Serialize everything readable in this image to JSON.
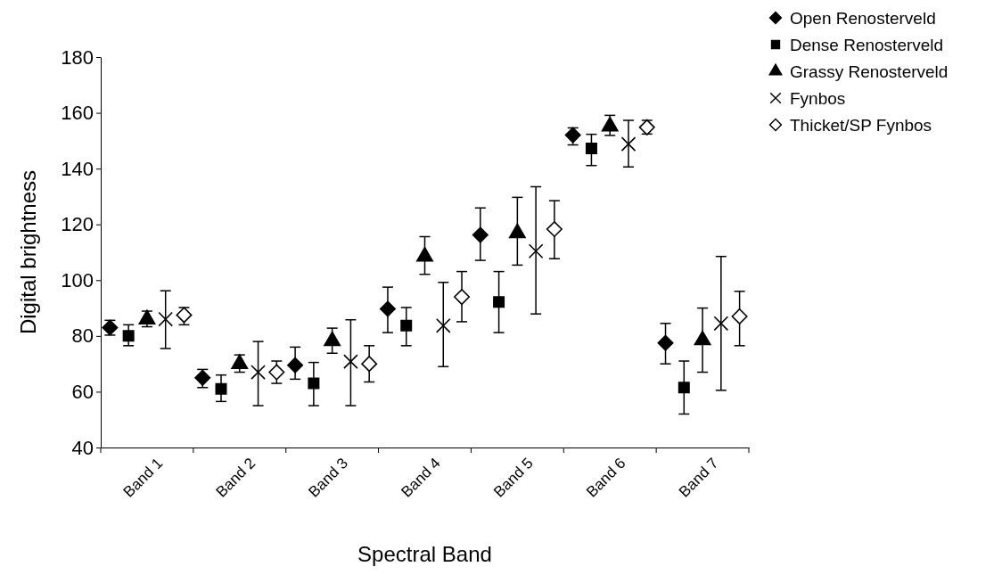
{
  "chart_data": {
    "type": "scatter",
    "xlabel": "Spectral Band",
    "ylabel": "Digital brightness",
    "categories": [
      "Band 1",
      "Band 2",
      "Band 3",
      "Band 4",
      "Band 5",
      "Band 6",
      "Band 7"
    ],
    "ylim": [
      40,
      180
    ],
    "yticks": [
      40,
      60,
      80,
      100,
      120,
      140,
      160,
      180
    ],
    "grid": false,
    "legend": "top right",
    "series": [
      {
        "name": "Open Renosterveld",
        "color": "#000000",
        "marker": "diamond",
        "values": [
          83,
          65,
          69.5,
          89.7,
          116.2,
          152,
          77.5
        ],
        "errors": [
          [
            80.3,
            85.6
          ],
          [
            61.5,
            68
          ],
          [
            64.5,
            76
          ],
          [
            81.2,
            97.5
          ],
          [
            107.1,
            125.9
          ],
          [
            148.5,
            154.6
          ],
          [
            70,
            84.5
          ]
        ]
      },
      {
        "name": "Dense Renosterveld",
        "color": "#000000",
        "marker": "square",
        "values": [
          80,
          61,
          63,
          83.7,
          92.2,
          147.2,
          61.5
        ],
        "errors": [
          [
            76.5,
            84
          ],
          [
            56.5,
            66
          ],
          [
            55,
            70.5
          ],
          [
            76.5,
            90.2
          ],
          [
            81.2,
            103.1
          ],
          [
            141.1,
            152.3
          ],
          [
            52,
            71
          ]
        ]
      },
      {
        "name": "Grassy Renosterveld",
        "color": "#000000",
        "marker": "triangle",
        "values": [
          86,
          70,
          78.2,
          108.5,
          116.9,
          155.2,
          78.5
        ],
        "errors": [
          [
            83.3,
            88.9
          ],
          [
            67,
            73.2
          ],
          [
            73.8,
            82.8
          ],
          [
            102.1,
            115.6
          ],
          [
            105.4,
            129.7
          ],
          [
            151.9,
            159.1
          ],
          [
            67,
            90
          ]
        ]
      },
      {
        "name": "Fynbos",
        "color": "#000000",
        "marker": "cross",
        "values": [
          86,
          67,
          70.8,
          83.7,
          110.4,
          148.8,
          84.5
        ],
        "errors": [
          [
            75.5,
            96.2
          ],
          [
            55,
            78
          ],
          [
            55,
            85.8
          ],
          [
            69,
            99.2
          ],
          [
            87.9,
            133.5
          ],
          [
            140.6,
            157.3
          ],
          [
            60.5,
            108.5
          ]
        ]
      },
      {
        "name": "Thicket/SP Fynbos",
        "color": "#000000",
        "marker": "diamond",
        "values": [
          87.5,
          67,
          70,
          94,
          118.3,
          154.8,
          87
        ],
        "errors": [
          [
            84,
            90.2
          ],
          [
            63,
            71
          ],
          [
            63.5,
            76.5
          ],
          [
            85.1,
            103.1
          ],
          [
            107.7,
            128.5
          ],
          [
            152.4,
            157.3
          ],
          [
            76.5,
            96
          ]
        ]
      }
    ]
  }
}
